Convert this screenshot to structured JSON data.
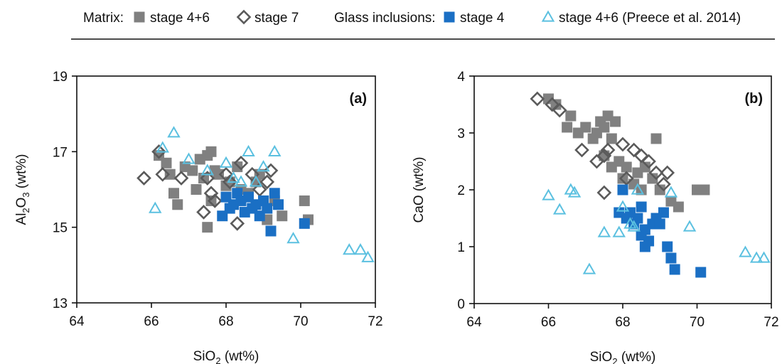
{
  "legend": {
    "group1_label": "Matrix:",
    "group2_label": "Glass inclusions:",
    "entries": [
      {
        "key": "matrix_s46",
        "label": "stage 4+6",
        "marker": "square-filled",
        "color": "#808080"
      },
      {
        "key": "matrix_s7",
        "label": "stage 7",
        "marker": "diamond-open",
        "color": "#5a5a5a"
      },
      {
        "key": "gi_s4",
        "label": "stage 4",
        "marker": "square-filled",
        "color": "#1a6fc4"
      },
      {
        "key": "gi_preece",
        "label": "stage 4+6 (Preece et al. 2014)",
        "marker": "triangle-open",
        "color": "#5bc0e0"
      }
    ]
  },
  "chart_data": [
    {
      "type": "scatter",
      "panel_label": "(a)",
      "xlabel_base": "SiO",
      "xlabel_sub": "2",
      "xlabel_tail": " (wt%)",
      "ylabel_parts": [
        "Al",
        "2",
        "O",
        "3",
        " (wt%)"
      ],
      "xlim": [
        64,
        72
      ],
      "ylim": [
        13,
        19
      ],
      "xticks": [
        64,
        66,
        68,
        70,
        72
      ],
      "yticks": [
        13,
        15,
        17,
        19
      ],
      "grid": false,
      "series": [
        {
          "key": "matrix_s46",
          "points": [
            [
              66.2,
              16.9
            ],
            [
              66.4,
              16.7
            ],
            [
              66.5,
              16.4
            ],
            [
              66.6,
              15.9
            ],
            [
              66.7,
              15.6
            ],
            [
              66.9,
              16.6
            ],
            [
              67.1,
              16.5
            ],
            [
              67.2,
              16.0
            ],
            [
              67.3,
              16.8
            ],
            [
              67.4,
              16.3
            ],
            [
              67.5,
              16.9
            ],
            [
              67.6,
              17.0
            ],
            [
              67.7,
              16.5
            ],
            [
              67.5,
              15.0
            ],
            [
              67.6,
              15.7
            ],
            [
              67.8,
              16.4
            ],
            [
              68.0,
              16.1
            ],
            [
              68.1,
              16.2
            ],
            [
              68.3,
              16.6
            ],
            [
              68.4,
              16.0
            ],
            [
              68.6,
              15.9
            ],
            [
              68.8,
              16.2
            ],
            [
              68.9,
              16.4
            ],
            [
              69.0,
              15.7
            ],
            [
              69.1,
              15.2
            ],
            [
              69.3,
              15.7
            ],
            [
              69.5,
              15.3
            ],
            [
              70.1,
              15.7
            ],
            [
              70.2,
              15.2
            ]
          ]
        },
        {
          "key": "matrix_s7",
          "points": [
            [
              65.8,
              16.3
            ],
            [
              66.2,
              17.0
            ],
            [
              66.3,
              16.4
            ],
            [
              66.8,
              16.3
            ],
            [
              67.4,
              15.4
            ],
            [
              67.5,
              16.3
            ],
            [
              67.6,
              15.9
            ],
            [
              67.7,
              15.7
            ],
            [
              68.0,
              16.4
            ],
            [
              68.1,
              16.2
            ],
            [
              68.4,
              16.7
            ],
            [
              68.3,
              15.1
            ],
            [
              68.7,
              16.4
            ],
            [
              68.9,
              16.0
            ],
            [
              69.1,
              16.2
            ],
            [
              69.2,
              16.5
            ]
          ]
        },
        {
          "key": "gi_s4",
          "points": [
            [
              67.9,
              15.3
            ],
            [
              68.0,
              15.8
            ],
            [
              68.1,
              15.5
            ],
            [
              68.2,
              15.6
            ],
            [
              68.3,
              15.9
            ],
            [
              68.4,
              15.7
            ],
            [
              68.5,
              15.4
            ],
            [
              68.6,
              15.8
            ],
            [
              68.7,
              15.5
            ],
            [
              68.8,
              15.6
            ],
            [
              68.9,
              15.3
            ],
            [
              69.0,
              15.7
            ],
            [
              69.1,
              15.5
            ],
            [
              69.2,
              14.9
            ],
            [
              69.3,
              15.9
            ],
            [
              69.4,
              15.6
            ],
            [
              70.1,
              15.1
            ]
          ]
        },
        {
          "key": "gi_preece",
          "points": [
            [
              66.1,
              15.5
            ],
            [
              66.3,
              17.1
            ],
            [
              66.6,
              17.5
            ],
            [
              67.0,
              16.8
            ],
            [
              67.5,
              16.5
            ],
            [
              68.0,
              16.7
            ],
            [
              68.2,
              16.3
            ],
            [
              68.4,
              16.2
            ],
            [
              68.6,
              17.0
            ],
            [
              68.8,
              16.2
            ],
            [
              69.0,
              16.6
            ],
            [
              69.3,
              17.0
            ],
            [
              69.8,
              14.7
            ],
            [
              71.3,
              14.4
            ],
            [
              71.6,
              14.4
            ],
            [
              71.8,
              14.2
            ]
          ]
        }
      ]
    },
    {
      "type": "scatter",
      "panel_label": "(b)",
      "xlabel_base": "SiO",
      "xlabel_sub": "2",
      "xlabel_tail": " (wt%)",
      "ylabel": "CaO (wt%)",
      "xlim": [
        64,
        72
      ],
      "ylim": [
        0,
        4
      ],
      "xticks": [
        64,
        66,
        68,
        70,
        72
      ],
      "yticks": [
        0,
        1,
        2,
        3,
        4
      ],
      "grid": false,
      "series": [
        {
          "key": "matrix_s46",
          "points": [
            [
              66.0,
              3.6
            ],
            [
              66.2,
              3.5
            ],
            [
              66.5,
              3.1
            ],
            [
              66.6,
              3.3
            ],
            [
              66.8,
              3.0
            ],
            [
              67.0,
              3.1
            ],
            [
              67.2,
              2.9
            ],
            [
              67.3,
              3.0
            ],
            [
              67.4,
              3.2
            ],
            [
              67.5,
              3.1
            ],
            [
              67.6,
              3.3
            ],
            [
              67.7,
              2.9
            ],
            [
              67.8,
              3.2
            ],
            [
              67.5,
              2.6
            ],
            [
              67.7,
              2.4
            ],
            [
              67.9,
              2.5
            ],
            [
              68.0,
              2.2
            ],
            [
              68.1,
              2.4
            ],
            [
              68.3,
              2.1
            ],
            [
              68.4,
              2.3
            ],
            [
              68.5,
              2.0
            ],
            [
              68.6,
              2.4
            ],
            [
              68.8,
              2.2
            ],
            [
              68.9,
              2.9
            ],
            [
              69.0,
              2.0
            ],
            [
              69.3,
              1.8
            ],
            [
              69.5,
              1.7
            ],
            [
              70.0,
              2.0
            ],
            [
              70.2,
              2.0
            ]
          ]
        },
        {
          "key": "matrix_s7",
          "points": [
            [
              65.7,
              3.6
            ],
            [
              66.1,
              3.5
            ],
            [
              66.3,
              3.4
            ],
            [
              66.9,
              2.7
            ],
            [
              67.3,
              2.5
            ],
            [
              67.5,
              2.6
            ],
            [
              67.6,
              2.7
            ],
            [
              67.5,
              1.95
            ],
            [
              68.0,
              2.8
            ],
            [
              68.1,
              2.2
            ],
            [
              68.3,
              2.7
            ],
            [
              68.5,
              2.6
            ],
            [
              68.7,
              2.5
            ],
            [
              68.9,
              2.3
            ],
            [
              69.1,
              2.1
            ],
            [
              69.2,
              2.3
            ]
          ]
        },
        {
          "key": "gi_s4",
          "points": [
            [
              67.9,
              1.6
            ],
            [
              68.0,
              2.0
            ],
            [
              68.1,
              1.5
            ],
            [
              68.2,
              1.6
            ],
            [
              68.3,
              1.4
            ],
            [
              68.4,
              1.5
            ],
            [
              68.5,
              1.2
            ],
            [
              68.6,
              1.3
            ],
            [
              68.7,
              1.1
            ],
            [
              68.6,
              1.0
            ],
            [
              68.8,
              1.4
            ],
            [
              68.9,
              1.5
            ],
            [
              69.0,
              1.4
            ],
            [
              69.1,
              1.6
            ],
            [
              69.2,
              1.0
            ],
            [
              69.3,
              0.8
            ],
            [
              69.4,
              0.6
            ],
            [
              70.1,
              0.55
            ],
            [
              68.5,
              1.7
            ]
          ]
        },
        {
          "key": "gi_preece",
          "points": [
            [
              66.0,
              1.9
            ],
            [
              66.3,
              1.65
            ],
            [
              66.6,
              2.0
            ],
            [
              66.7,
              1.95
            ],
            [
              67.1,
              0.6
            ],
            [
              67.5,
              1.25
            ],
            [
              67.9,
              1.25
            ],
            [
              68.0,
              1.7
            ],
            [
              68.2,
              1.4
            ],
            [
              68.3,
              1.35
            ],
            [
              68.4,
              2.0
            ],
            [
              69.3,
              1.95
            ],
            [
              69.8,
              1.35
            ],
            [
              71.3,
              0.9
            ],
            [
              71.6,
              0.8
            ],
            [
              71.8,
              0.8
            ]
          ]
        }
      ]
    }
  ]
}
